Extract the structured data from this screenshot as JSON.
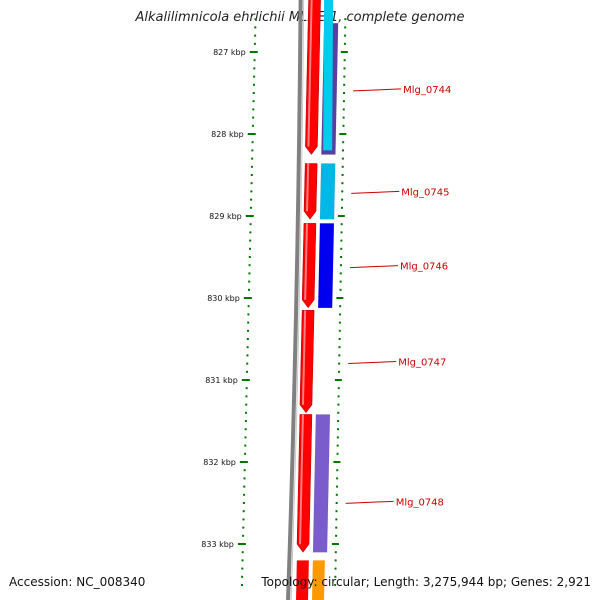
{
  "title": "Alkalilimnicola ehrlichii MLHE-1, complete genome",
  "footer": {
    "accession": "Accession: NC_008340",
    "summary": "Topology: circular; Length: 3,275,944 bp; Genes: 2,921"
  },
  "ticks": [
    {
      "label": "827 kbp",
      "kbp": 827
    },
    {
      "label": "828 kbp",
      "kbp": 828
    },
    {
      "label": "829 kbp",
      "kbp": 829
    },
    {
      "label": "830 kbp",
      "kbp": 830
    },
    {
      "label": "831 kbp",
      "kbp": 831
    },
    {
      "label": "832 kbp",
      "kbp": 832
    },
    {
      "label": "833 kbp",
      "kbp": 833
    }
  ],
  "genes": [
    {
      "label": "Mlg_0744",
      "start_kbp": 826.65,
      "end_kbp": 828.25,
      "color": "#5a3fa0"
    },
    {
      "label": "Mlg_0745",
      "start_kbp": 828.36,
      "end_kbp": 829.04,
      "color": "#00b8e6"
    },
    {
      "label": "Mlg_0746",
      "start_kbp": 829.09,
      "end_kbp": 830.12,
      "color": "#0000ee"
    },
    {
      "label": "Mlg_0747",
      "start_kbp": 830.15,
      "end_kbp": 831.4,
      "color": ""
    },
    {
      "label": "Mlg_0748",
      "start_kbp": 831.42,
      "end_kbp": 833.1,
      "color": "#7a5ccc"
    }
  ],
  "colors": {
    "cds": "#ff0000",
    "backbone": "#808080",
    "tick": "#007700",
    "gene_label": "#cc0000",
    "orange_feature": "#ff9900"
  }
}
